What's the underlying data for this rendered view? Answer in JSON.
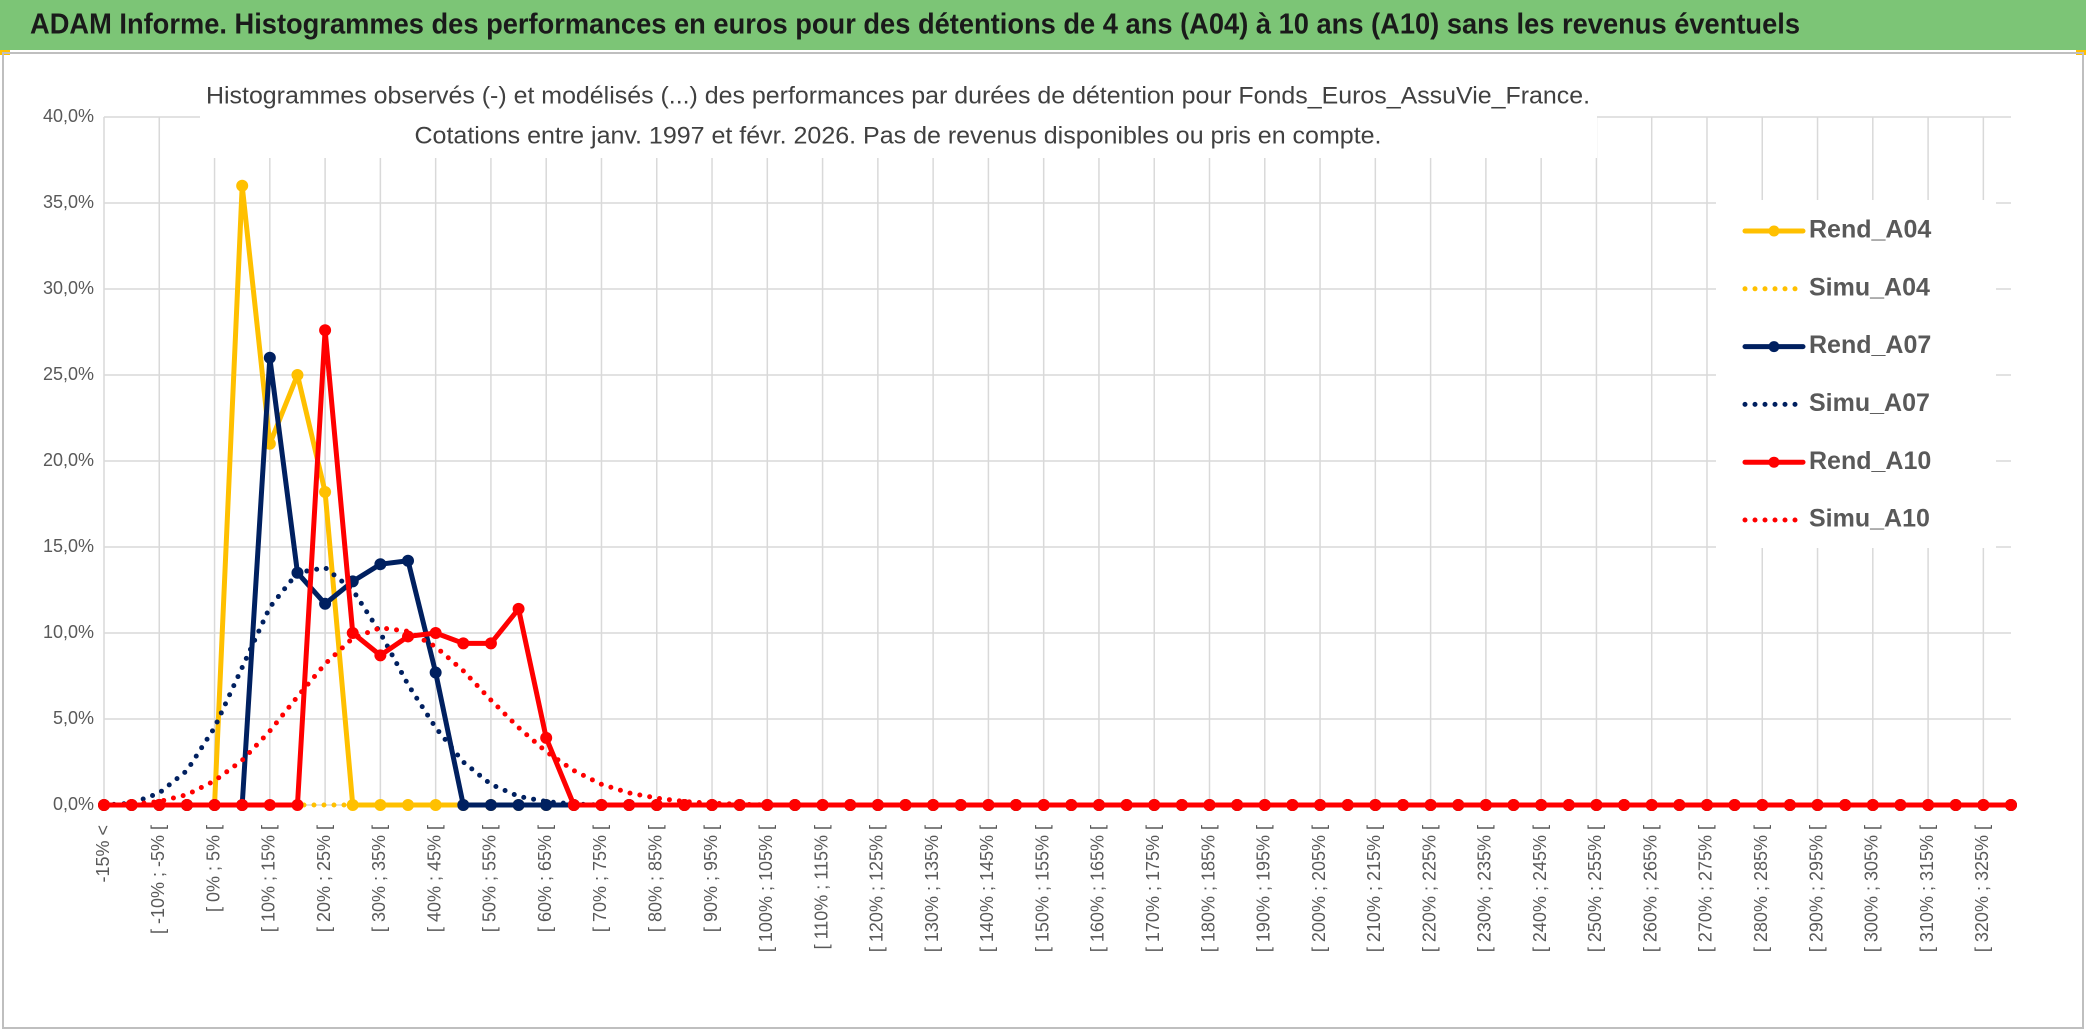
{
  "header": {
    "title": "ADAM Informe. Histogrammes des performances en euros pour des détentions de 4 ans (A04) à 10 ans (A10) sans les revenus éventuels"
  },
  "chart_data": {
    "type": "line",
    "title": "Histogrammes observés (-) et modélisés (...) des performances par durées de détention pour Fonds_Euros_AssuVie_France.",
    "subtitle": "Cotations entre janv. 1997 et févr. 2026. Pas de revenus disponibles ou pris en compte.",
    "categories": [
      "-15% <",
      null,
      "[ -10% ; -5% [",
      null,
      "[ 0% ; 5% [",
      null,
      "[ 10% ; 15% [",
      null,
      "[ 20% ; 25% [",
      null,
      "[ 30% ; 35% [",
      null,
      "[ 40% ; 45% [",
      null,
      "[ 50% ; 55% [",
      null,
      "[ 60% ; 65% [",
      null,
      "[ 70% ; 75% [",
      null,
      "[ 80% ; 85% [",
      null,
      "[ 90% ; 95% [",
      null,
      "[ 100% ; 105% [",
      null,
      "[ 110% ; 115% [",
      null,
      "[ 120% ; 125% [",
      null,
      "[ 130% ; 135% [",
      null,
      "[ 140% ; 145% [",
      null,
      "[ 150% ; 155% [",
      null,
      "[ 160% ; 165% [",
      null,
      "[ 170% ; 175% [",
      null,
      "[ 180% ; 185% [",
      null,
      "[ 190% ; 195% [",
      null,
      "[ 200% ; 205% [",
      null,
      "[ 210% ; 215% [",
      null,
      "[ 220% ; 225% [",
      null,
      "[ 230% ; 235% [",
      null,
      "[ 240% ; 245% [",
      null,
      "[ 250% ; 255% [",
      null,
      "[ 260% ; 265% [",
      null,
      "[ 270% ; 275% [",
      null,
      "[ 280% ; 285% [",
      null,
      "[ 290% ; 295% [",
      null,
      "[ 300% ; 305% [",
      null,
      "[ 310% ; 315% [",
      null,
      "[ 320% ; 325% [",
      null
    ],
    "series": [
      {
        "name": "Rend_A04",
        "color": "#ffc000",
        "style": "solid",
        "markers": true,
        "values": [
          0,
          0,
          0,
          0,
          0,
          36,
          21,
          25,
          18.2,
          0,
          0,
          0,
          0,
          0,
          0,
          0,
          0,
          0,
          0,
          0,
          0,
          0,
          0,
          0,
          0,
          0,
          0,
          0,
          0,
          0,
          0,
          0,
          0,
          0,
          0,
          0,
          0,
          0,
          0,
          0,
          0,
          0,
          0,
          0,
          0,
          0,
          0,
          0,
          0,
          0,
          0,
          0,
          0,
          0,
          0,
          0,
          0,
          0,
          0,
          0,
          0,
          0,
          0,
          0,
          0,
          0,
          0,
          0,
          0,
          0
        ]
      },
      {
        "name": "Simu_A04",
        "color": "#ffc000",
        "style": "dotted",
        "markers": false,
        "values": [
          0,
          0,
          0,
          0,
          0,
          0,
          0,
          0,
          0,
          0,
          0,
          0,
          0,
          0,
          0,
          0,
          0,
          0,
          0,
          0,
          0,
          0,
          0,
          0,
          0,
          0,
          0,
          0,
          0,
          0,
          0,
          0,
          0,
          0,
          0,
          0,
          0,
          0,
          0,
          0,
          0,
          0,
          0,
          0,
          0,
          0,
          0,
          0,
          0,
          0,
          0,
          0,
          0,
          0,
          0,
          0,
          0,
          0,
          0,
          0,
          0,
          0,
          0,
          0,
          0,
          0,
          0,
          0,
          0,
          0
        ]
      },
      {
        "name": "Rend_A07",
        "color": "#002060",
        "style": "solid",
        "markers": true,
        "values": [
          0,
          0,
          0,
          0,
          0,
          0,
          26,
          13.5,
          11.7,
          13,
          14,
          14.2,
          7.7,
          0,
          0,
          0,
          0,
          0,
          0,
          0,
          0,
          0,
          0,
          0,
          0,
          0,
          0,
          0,
          0,
          0,
          0,
          0,
          0,
          0,
          0,
          0,
          0,
          0,
          0,
          0,
          0,
          0,
          0,
          0,
          0,
          0,
          0,
          0,
          0,
          0,
          0,
          0,
          0,
          0,
          0,
          0,
          0,
          0,
          0,
          0,
          0,
          0,
          0,
          0,
          0,
          0,
          0,
          0,
          0,
          0
        ]
      },
      {
        "name": "Simu_A07",
        "color": "#002060",
        "style": "dotted",
        "markers": false,
        "values": [
          0,
          0.1,
          0.7,
          2,
          4.5,
          8,
          11.5,
          13.5,
          13.8,
          12.5,
          10,
          7,
          4.5,
          2.5,
          1.2,
          0.5,
          0.2,
          0.05,
          0,
          0,
          0,
          0,
          0,
          0,
          0,
          0,
          0,
          0,
          0,
          0,
          0,
          0,
          0,
          0,
          0,
          0,
          0,
          0,
          0,
          0,
          0,
          0,
          0,
          0,
          0,
          0,
          0,
          0,
          0,
          0,
          0,
          0,
          0,
          0,
          0,
          0,
          0,
          0,
          0,
          0,
          0,
          0,
          0,
          0,
          0,
          0,
          0,
          0,
          0,
          0
        ]
      },
      {
        "name": "Rend_A10",
        "color": "#ff0000",
        "style": "solid",
        "markers": true,
        "values": [
          0,
          0,
          0,
          0,
          0,
          0,
          0,
          0,
          27.6,
          10,
          8.7,
          9.8,
          10,
          9.4,
          9.4,
          11.4,
          3.9,
          0,
          0,
          0,
          0,
          0,
          0,
          0,
          0,
          0,
          0,
          0,
          0,
          0,
          0,
          0,
          0,
          0,
          0,
          0,
          0,
          0,
          0,
          0,
          0,
          0,
          0,
          0,
          0,
          0,
          0,
          0,
          0,
          0,
          0,
          0,
          0,
          0,
          0,
          0,
          0,
          0,
          0,
          0,
          0,
          0,
          0,
          0,
          0,
          0,
          0,
          0,
          0,
          0
        ]
      },
      {
        "name": "Simu_A10",
        "color": "#ff0000",
        "style": "dotted",
        "markers": false,
        "values": [
          0,
          0.05,
          0.2,
          0.6,
          1.4,
          2.6,
          4.3,
          6.3,
          8.2,
          9.7,
          10.3,
          10.1,
          9.2,
          7.8,
          6.1,
          4.5,
          3.1,
          2,
          1.2,
          0.7,
          0.4,
          0.2,
          0.1,
          0.05,
          0,
          0,
          0,
          0,
          0,
          0,
          0,
          0,
          0,
          0,
          0,
          0,
          0,
          0,
          0,
          0,
          0,
          0,
          0,
          0,
          0,
          0,
          0,
          0,
          0,
          0,
          0,
          0,
          0,
          0,
          0,
          0,
          0,
          0,
          0,
          0,
          0,
          0,
          0,
          0,
          0,
          0,
          0,
          0,
          0,
          0
        ]
      }
    ],
    "ylim": [
      0,
      40
    ],
    "yticks": [
      {
        "value": 0,
        "label": "0,0%"
      },
      {
        "value": 5,
        "label": "5,0%"
      },
      {
        "value": 10,
        "label": "10,0%"
      },
      {
        "value": 15,
        "label": "15,0%"
      },
      {
        "value": 20,
        "label": "20,0%"
      },
      {
        "value": 25,
        "label": "25,0%"
      },
      {
        "value": 30,
        "label": "30,0%"
      },
      {
        "value": 35,
        "label": "35,0%"
      },
      {
        "value": 40,
        "label": "40,0%"
      }
    ],
    "grid": true,
    "legend": "right"
  }
}
